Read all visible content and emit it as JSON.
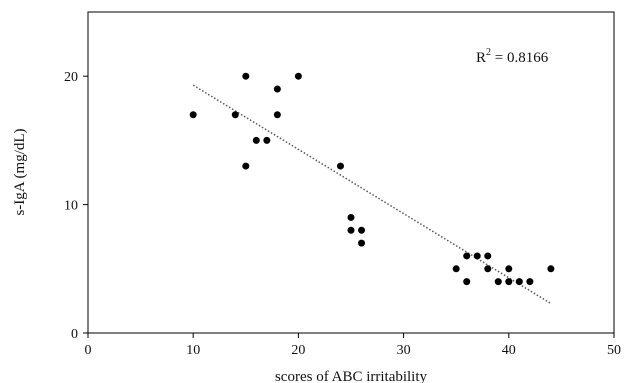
{
  "chart_data": {
    "type": "scatter",
    "xlabel": "scores of ABC irritability",
    "ylabel": "s-IgA (mg/dL)",
    "xlim": [
      0,
      50
    ],
    "ylim": [
      0,
      25
    ],
    "x_ticks": [
      0,
      10,
      20,
      30,
      40,
      50
    ],
    "y_ticks": [
      0,
      10,
      20
    ],
    "grid": false,
    "annotation": {
      "prefix": "R",
      "superscript": "2",
      "suffix": " = 0.8166"
    },
    "colors": {
      "points": "#000000",
      "trendline": "#555555",
      "axes": "#000000"
    },
    "points": [
      {
        "x": 10,
        "y": 17
      },
      {
        "x": 14,
        "y": 17
      },
      {
        "x": 15,
        "y": 20
      },
      {
        "x": 15,
        "y": 13
      },
      {
        "x": 16,
        "y": 15
      },
      {
        "x": 17,
        "y": 15
      },
      {
        "x": 18,
        "y": 19
      },
      {
        "x": 18,
        "y": 17
      },
      {
        "x": 20,
        "y": 20
      },
      {
        "x": 24,
        "y": 13
      },
      {
        "x": 25,
        "y": 9
      },
      {
        "x": 25,
        "y": 8
      },
      {
        "x": 26,
        "y": 8
      },
      {
        "x": 26,
        "y": 7
      },
      {
        "x": 35,
        "y": 5
      },
      {
        "x": 36,
        "y": 6
      },
      {
        "x": 36,
        "y": 4
      },
      {
        "x": 37,
        "y": 6
      },
      {
        "x": 38,
        "y": 6
      },
      {
        "x": 38,
        "y": 5
      },
      {
        "x": 39,
        "y": 4
      },
      {
        "x": 40,
        "y": 5
      },
      {
        "x": 40,
        "y": 4
      },
      {
        "x": 41,
        "y": 4
      },
      {
        "x": 42,
        "y": 4
      },
      {
        "x": 44,
        "y": 5
      }
    ],
    "trendline": {
      "x": [
        10,
        44
      ],
      "y": [
        19.3,
        2.3
      ]
    }
  }
}
